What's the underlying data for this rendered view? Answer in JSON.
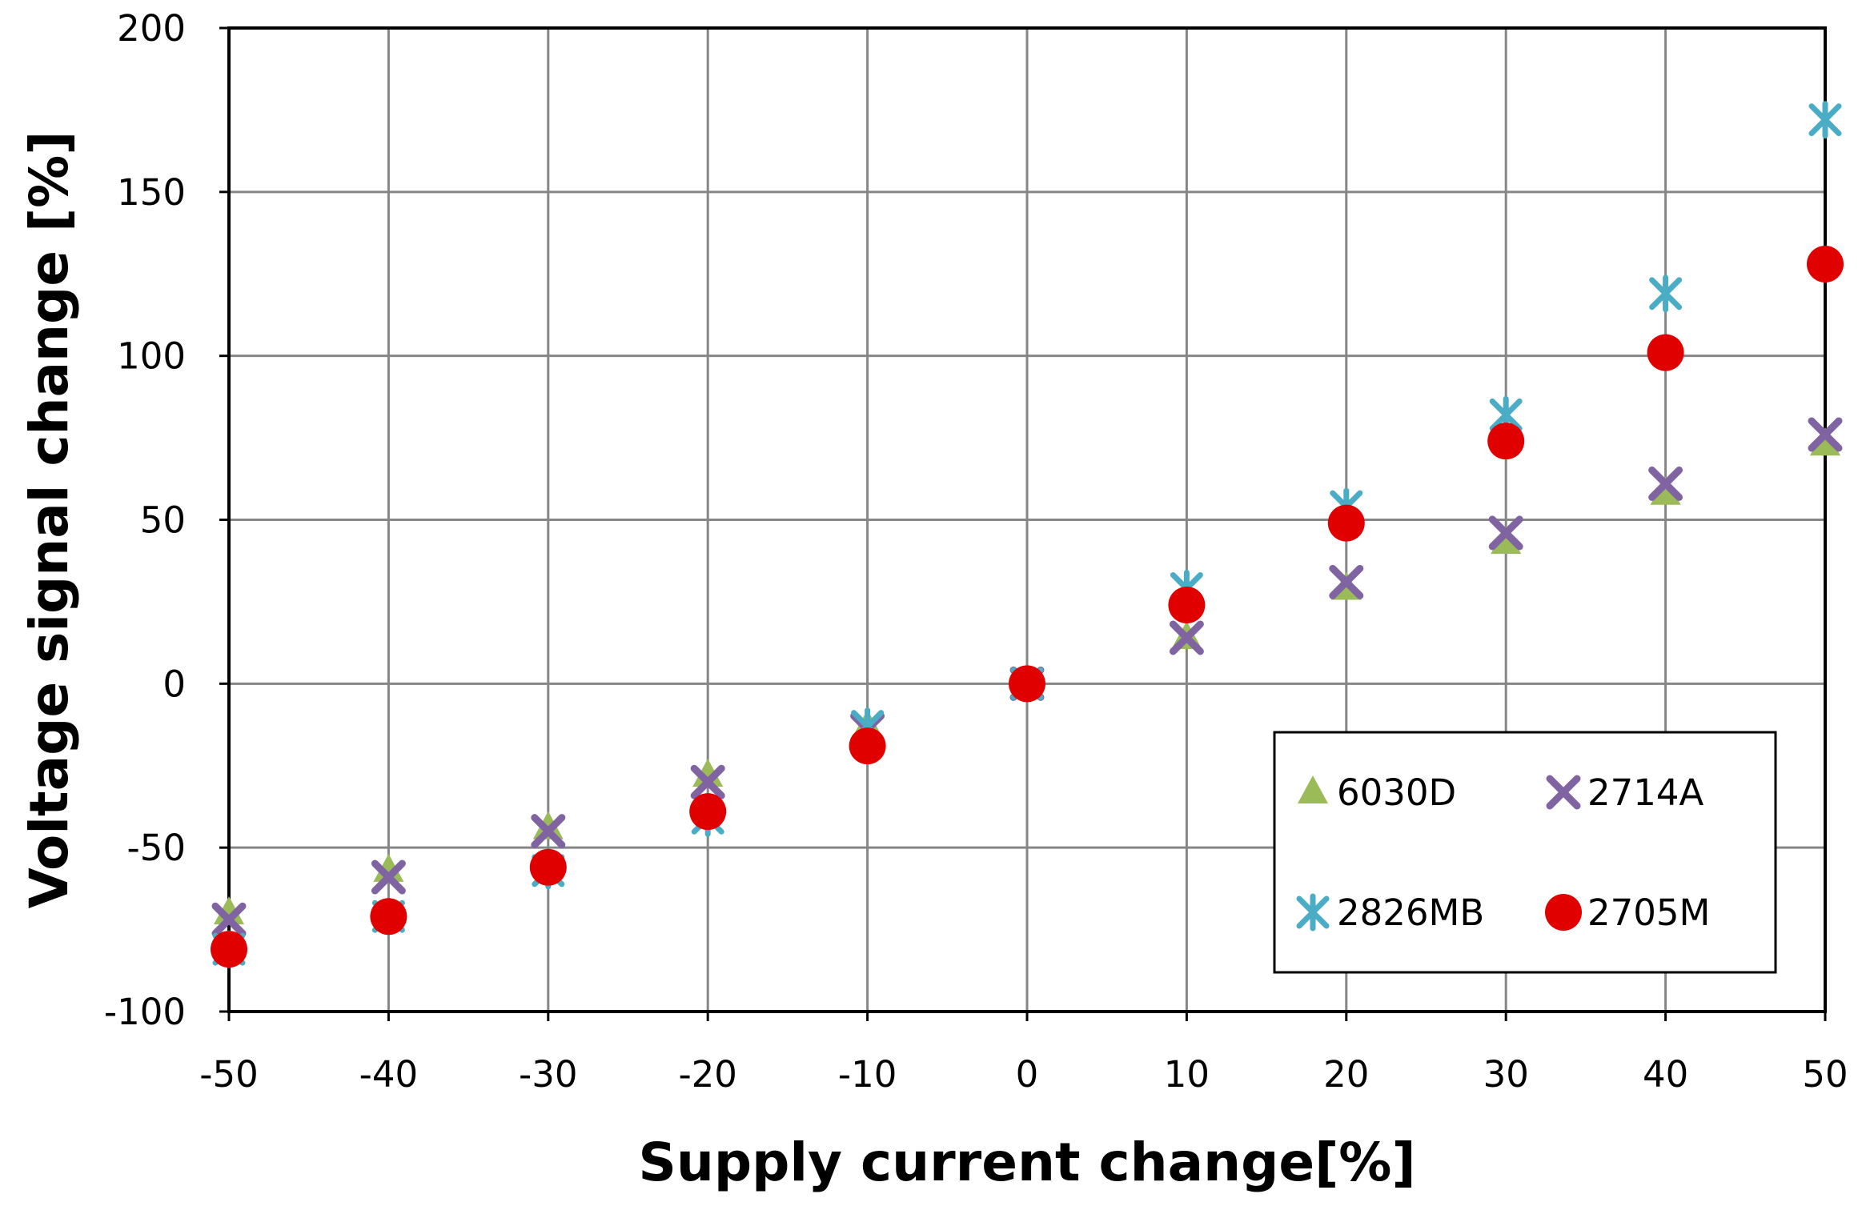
{
  "chart_data": {
    "type": "scatter",
    "title": "",
    "xlabel": "Supply current change[%]",
    "ylabel": "Voltage signal change [%]",
    "xlim": [
      -50,
      50
    ],
    "ylim": [
      -100,
      200
    ],
    "x_ticks": [
      -50,
      -40,
      -30,
      -20,
      -10,
      0,
      10,
      20,
      30,
      40,
      50
    ],
    "y_ticks": [
      -100,
      -50,
      0,
      50,
      100,
      150,
      200
    ],
    "x_tick_labels": [
      "-50",
      "-40",
      "-30",
      "-20",
      "-10",
      "0",
      "10",
      "20",
      "30",
      "40",
      "50"
    ],
    "y_tick_labels": [
      "-100",
      "-50",
      "0",
      "50",
      "100",
      "150",
      "200"
    ],
    "grid": true,
    "legend_position": "bottom-right",
    "x": [
      -50,
      -40,
      -30,
      -20,
      -10,
      0,
      10,
      20,
      30,
      40,
      50
    ],
    "series": [
      {
        "name": "6030D",
        "marker": "triangle",
        "color": "#9BBB59",
        "values": [
          -70,
          -57,
          -44,
          -28,
          -13,
          0,
          14,
          29,
          43,
          58,
          73
        ]
      },
      {
        "name": "2714A",
        "marker": "x",
        "color": "#8064A2",
        "values": [
          -72,
          -59,
          -45,
          -30,
          -14,
          0,
          14,
          31,
          46,
          61,
          76
        ]
      },
      {
        "name": "2826MB",
        "marker": "star",
        "color": "#4BACC6",
        "values": [
          -81,
          -71,
          -57,
          -41,
          -13,
          0,
          29,
          54,
          82,
          119,
          172
        ]
      },
      {
        "name": "2705M",
        "marker": "circle",
        "color": "#E00000",
        "values": [
          -81,
          -71,
          -56,
          -39,
          -19,
          0,
          24,
          49,
          74,
          101,
          128
        ]
      }
    ]
  }
}
